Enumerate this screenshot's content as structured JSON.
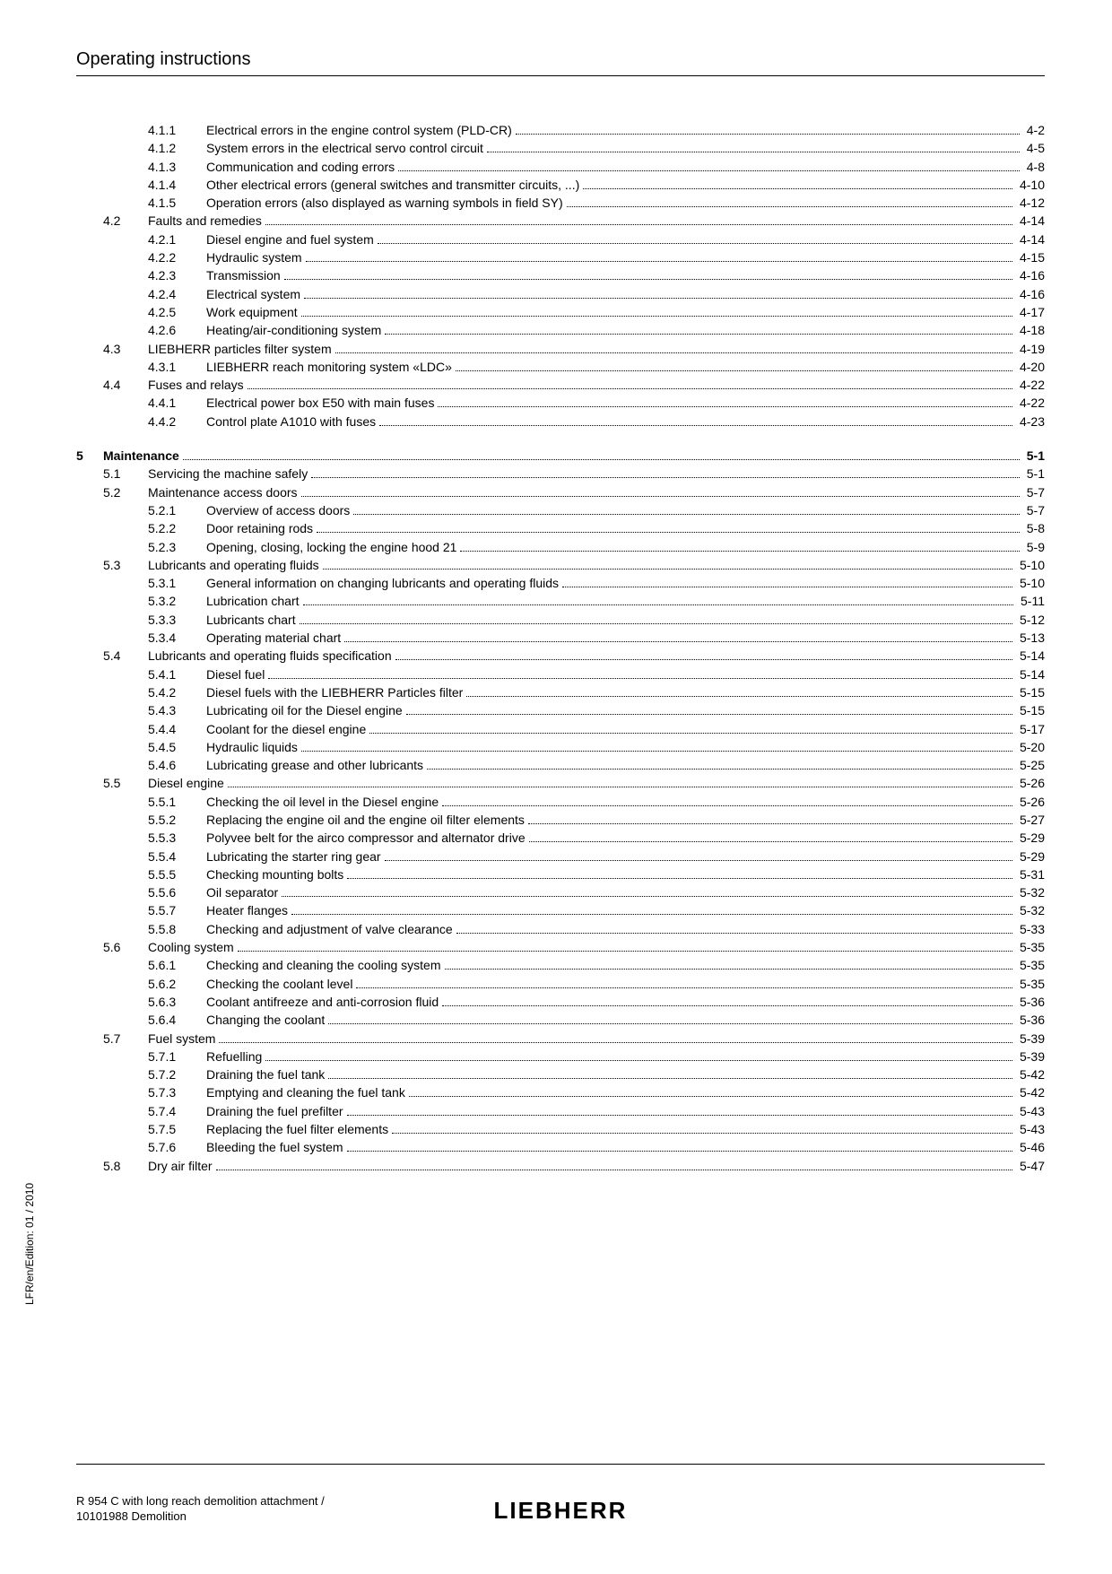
{
  "header": "Operating instructions",
  "side_label": "LFR/en/Edition: 01 / 2010",
  "footer_left_line1": "R 954 C with long reach demolition attachment /",
  "footer_left_line2": "10101988 Demolition",
  "brand": "LIEBHERR",
  "entries": [
    {
      "level": 2,
      "num": "4.1.1",
      "title": "Electrical errors in the engine control system (PLD-CR)",
      "page": "4-2"
    },
    {
      "level": 2,
      "num": "4.1.2",
      "title": "System errors in the electrical servo control circuit",
      "page": "4-5"
    },
    {
      "level": 2,
      "num": "4.1.3",
      "title": "Communication and coding errors",
      "page": "4-8"
    },
    {
      "level": 2,
      "num": "4.1.4",
      "title": "Other electrical errors (general switches and transmitter circuits, ...)",
      "page": "4-10"
    },
    {
      "level": 2,
      "num": "4.1.5",
      "title": "Operation errors (also displayed as warning symbols in field SY)",
      "page": "4-12"
    },
    {
      "level": 1,
      "num": "4.2",
      "title": "Faults and remedies",
      "page": "4-14"
    },
    {
      "level": 2,
      "num": "4.2.1",
      "title": "Diesel engine and fuel system",
      "page": "4-14"
    },
    {
      "level": 2,
      "num": "4.2.2",
      "title": "Hydraulic system",
      "page": "4-15"
    },
    {
      "level": 2,
      "num": "4.2.3",
      "title": "Transmission",
      "page": "4-16"
    },
    {
      "level": 2,
      "num": "4.2.4",
      "title": "Electrical system",
      "page": "4-16"
    },
    {
      "level": 2,
      "num": "4.2.5",
      "title": "Work equipment",
      "page": "4-17"
    },
    {
      "level": 2,
      "num": "4.2.6",
      "title": "Heating/air-conditioning system",
      "page": "4-18"
    },
    {
      "level": 1,
      "num": "4.3",
      "title": "LIEBHERR particles filter system",
      "page": "4-19"
    },
    {
      "level": 2,
      "num": "4.3.1",
      "title": "LIEBHERR reach monitoring system «LDC»",
      "page": "4-20"
    },
    {
      "level": 1,
      "num": "4.4",
      "title": "Fuses and relays",
      "page": "4-22"
    },
    {
      "level": 2,
      "num": "4.4.1",
      "title": "Electrical power box E50 with main fuses",
      "page": "4-22"
    },
    {
      "level": 2,
      "num": "4.4.2",
      "title": "Control plate A1010 with fuses",
      "page": "4-23"
    },
    {
      "gap": true
    },
    {
      "level": 0,
      "num": "5",
      "title": "Maintenance",
      "page": "5-1",
      "bold": true
    },
    {
      "level": 1,
      "num": "5.1",
      "title": "Servicing the machine safely",
      "page": "5-1"
    },
    {
      "level": 1,
      "num": "5.2",
      "title": "Maintenance access doors",
      "page": "5-7"
    },
    {
      "level": 2,
      "num": "5.2.1",
      "title": "Overview of access doors",
      "page": "5-7"
    },
    {
      "level": 2,
      "num": "5.2.2",
      "title": "Door retaining rods",
      "page": "5-8"
    },
    {
      "level": 2,
      "num": "5.2.3",
      "title": "Opening, closing, locking the engine hood 21",
      "page": "5-9"
    },
    {
      "level": 1,
      "num": "5.3",
      "title": "Lubricants and operating fluids",
      "page": "5-10"
    },
    {
      "level": 2,
      "num": "5.3.1",
      "title": "General information on changing lubricants and operating fluids",
      "page": "5-10"
    },
    {
      "level": 2,
      "num": "5.3.2",
      "title": "Lubrication chart",
      "page": "5-11"
    },
    {
      "level": 2,
      "num": "5.3.3",
      "title": "Lubricants chart",
      "page": "5-12"
    },
    {
      "level": 2,
      "num": "5.3.4",
      "title": "Operating material chart",
      "page": "5-13"
    },
    {
      "level": 1,
      "num": "5.4",
      "title": "Lubricants and operating fluids specification",
      "page": "5-14"
    },
    {
      "level": 2,
      "num": "5.4.1",
      "title": "Diesel fuel",
      "page": "5-14"
    },
    {
      "level": 2,
      "num": "5.4.2",
      "title": "Diesel fuels with the LIEBHERR Particles filter",
      "page": "5-15"
    },
    {
      "level": 2,
      "num": "5.4.3",
      "title": "Lubricating oil for the Diesel engine",
      "page": "5-15"
    },
    {
      "level": 2,
      "num": "5.4.4",
      "title": "Coolant for the diesel engine",
      "page": "5-17"
    },
    {
      "level": 2,
      "num": "5.4.5",
      "title": "Hydraulic liquids",
      "page": "5-20"
    },
    {
      "level": 2,
      "num": "5.4.6",
      "title": "Lubricating grease and other lubricants",
      "page": "5-25"
    },
    {
      "level": 1,
      "num": "5.5",
      "title": "Diesel engine",
      "page": "5-26"
    },
    {
      "level": 2,
      "num": "5.5.1",
      "title": "Checking the oil level in the Diesel engine",
      "page": "5-26"
    },
    {
      "level": 2,
      "num": "5.5.2",
      "title": "Replacing the engine oil and the engine oil filter elements",
      "page": "5-27"
    },
    {
      "level": 2,
      "num": "5.5.3",
      "title": "Polyvee belt for the airco compressor and alternator drive",
      "page": "5-29"
    },
    {
      "level": 2,
      "num": "5.5.4",
      "title": "Lubricating the starter ring gear",
      "page": "5-29"
    },
    {
      "level": 2,
      "num": "5.5.5",
      "title": "Checking mounting bolts",
      "page": "5-31"
    },
    {
      "level": 2,
      "num": "5.5.6",
      "title": "Oil separator",
      "page": "5-32"
    },
    {
      "level": 2,
      "num": "5.5.7",
      "title": "Heater flanges",
      "page": "5-32"
    },
    {
      "level": 2,
      "num": "5.5.8",
      "title": "Checking and adjustment of valve clearance",
      "page": "5-33"
    },
    {
      "level": 1,
      "num": "5.6",
      "title": "Cooling system",
      "page": "5-35"
    },
    {
      "level": 2,
      "num": "5.6.1",
      "title": "Checking and cleaning the cooling system",
      "page": "5-35"
    },
    {
      "level": 2,
      "num": "5.6.2",
      "title": "Checking the coolant level",
      "page": "5-35"
    },
    {
      "level": 2,
      "num": "5.6.3",
      "title": "Coolant antifreeze and anti-corrosion fluid",
      "page": "5-36"
    },
    {
      "level": 2,
      "num": "5.6.4",
      "title": "Changing the coolant",
      "page": "5-36"
    },
    {
      "level": 1,
      "num": "5.7",
      "title": "Fuel system",
      "page": "5-39"
    },
    {
      "level": 2,
      "num": "5.7.1",
      "title": "Refuelling",
      "page": "5-39"
    },
    {
      "level": 2,
      "num": "5.7.2",
      "title": "Draining the fuel tank",
      "page": "5-42"
    },
    {
      "level": 2,
      "num": "5.7.3",
      "title": "Emptying and cleaning the fuel tank",
      "page": "5-42"
    },
    {
      "level": 2,
      "num": "5.7.4",
      "title": "Draining the fuel prefilter",
      "page": "5-43"
    },
    {
      "level": 2,
      "num": "5.7.5",
      "title": "Replacing the fuel filter elements",
      "page": "5-43"
    },
    {
      "level": 2,
      "num": "5.7.6",
      "title": "Bleeding the fuel system",
      "page": "5-46"
    },
    {
      "level": 1,
      "num": "5.8",
      "title": "Dry air filter",
      "page": "5-47"
    }
  ]
}
